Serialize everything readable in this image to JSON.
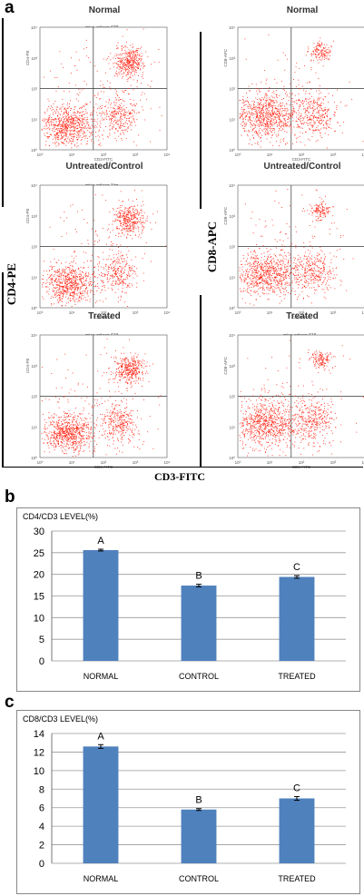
{
  "panels": {
    "a": "a",
    "b": "b",
    "c": "c"
  },
  "flow": {
    "y_label_left": "CD4-PE",
    "y_label_right": "CD8-APC",
    "x_label": "CD3-FITC",
    "plots": [
      {
        "title": "Normal",
        "header": "mice spleen 620",
        "xaxis": "CD3-FITC",
        "yaxis": "CD4-PE"
      },
      {
        "title": "Normal",
        "header": "",
        "xaxis": "CD3-FITC",
        "yaxis": "CD8-APC"
      },
      {
        "title": "Untreated/Control",
        "header": "mice spleen 1/m",
        "xaxis": "CD3-FITC",
        "yaxis": "CD4-PE"
      },
      {
        "title": "Untreated/Control",
        "header": "",
        "xaxis": "CD3-FITC",
        "yaxis": "CD8-APC"
      },
      {
        "title": "Treated",
        "header": "mice spleen 619",
        "xaxis": "CD3-FITC",
        "yaxis": "CD4-PE"
      },
      {
        "title": "Treated",
        "header": "mice spleen 619",
        "xaxis": "CD3-FITC",
        "yaxis": "CD8-APC"
      }
    ]
  },
  "colors": {
    "bar": "#4f81bd",
    "dots": "#ff2a1a"
  },
  "chart_data": [
    {
      "type": "bar",
      "title": "CD4/CD3 LEVEL(%)",
      "categories": [
        "NORMAL",
        "CONTROL",
        "TREATED"
      ],
      "values": [
        25.6,
        17.4,
        19.4
      ],
      "errors": [
        0.2,
        0.3,
        0.3
      ],
      "letters": [
        "A",
        "B",
        "C"
      ],
      "ylim": [
        0,
        30
      ],
      "yticks": [
        0,
        5,
        10,
        15,
        20,
        25,
        30
      ],
      "grid": true
    },
    {
      "type": "bar",
      "title": "CD8/CD3 LEVEL(%)",
      "categories": [
        "NORMAL",
        "CONTROL",
        "TREATED"
      ],
      "values": [
        12.6,
        5.8,
        7.0
      ],
      "errors": [
        0.2,
        0.1,
        0.2
      ],
      "letters": [
        "A",
        "B",
        "C"
      ],
      "ylim": [
        0,
        14
      ],
      "yticks": [
        0,
        2,
        4,
        6,
        8,
        10,
        12,
        14
      ],
      "grid": true
    }
  ]
}
